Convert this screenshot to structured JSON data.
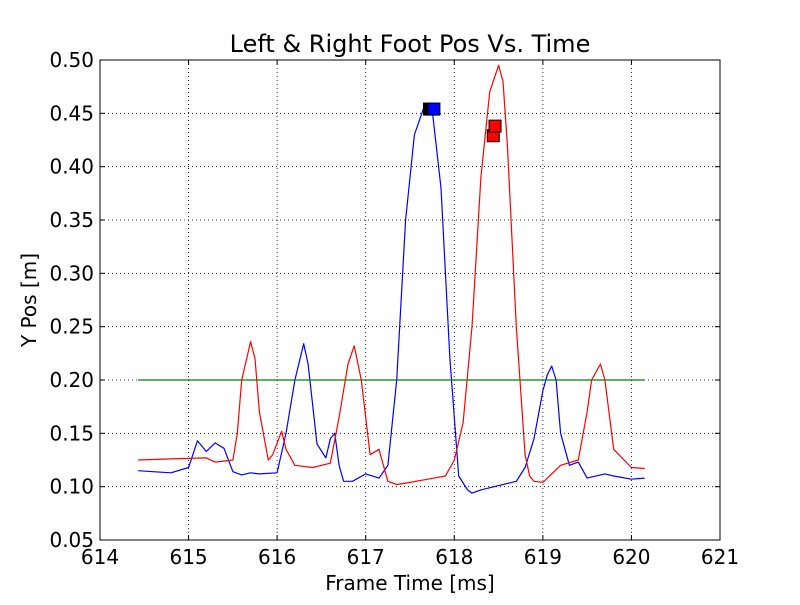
{
  "chart_data": {
    "type": "line",
    "title": "Left & Right Foot Pos Vs. Time",
    "xlabel": "Frame Time [ms]",
    "ylabel": "Y Pos [m]",
    "xlim": [
      614,
      621
    ],
    "ylim": [
      0.05,
      0.5
    ],
    "x_ticks": [
      "614",
      "615",
      "616",
      "617",
      "618",
      "619",
      "620",
      "621"
    ],
    "y_ticks": [
      "0.05",
      "0.10",
      "0.15",
      "0.20",
      "0.25",
      "0.30",
      "0.35",
      "0.40",
      "0.45",
      "0.50"
    ],
    "grid": true,
    "grid_style": "dotted",
    "colors": {
      "blue": "#0000ff",
      "red": "#ff0000",
      "green": "#008000",
      "black": "#000000"
    },
    "series": [
      {
        "color": "#0000ff",
        "x": [
          614.43,
          614.6,
          614.8,
          615.0,
          615.1,
          615.2,
          615.3,
          615.4,
          615.5,
          615.6,
          615.7,
          615.8,
          616.0,
          616.1,
          616.2,
          616.3,
          616.35,
          616.45,
          616.55,
          616.6,
          616.65,
          616.7,
          616.75,
          616.85,
          617.0,
          617.15,
          617.25,
          617.35,
          617.45,
          617.55,
          617.65,
          617.75,
          617.85,
          617.95,
          618.05,
          618.15,
          618.2,
          618.3,
          618.5,
          618.7,
          618.8,
          618.9,
          619.0,
          619.05,
          619.1,
          619.15,
          619.2,
          619.3,
          619.4,
          619.5,
          619.7,
          619.8,
          620.0,
          620.15
        ],
        "y": [
          0.115,
          0.114,
          0.113,
          0.118,
          0.143,
          0.133,
          0.141,
          0.136,
          0.114,
          0.111,
          0.113,
          0.112,
          0.113,
          0.15,
          0.2,
          0.234,
          0.215,
          0.14,
          0.127,
          0.145,
          0.15,
          0.12,
          0.105,
          0.105,
          0.112,
          0.108,
          0.12,
          0.2,
          0.35,
          0.43,
          0.454,
          0.454,
          0.38,
          0.22,
          0.11,
          0.097,
          0.094,
          0.097,
          0.101,
          0.105,
          0.118,
          0.145,
          0.19,
          0.205,
          0.213,
          0.2,
          0.15,
          0.12,
          0.123,
          0.108,
          0.112,
          0.11,
          0.107,
          0.108
        ]
      },
      {
        "color": "#ff0000",
        "x": [
          614.43,
          614.8,
          615.2,
          615.3,
          615.5,
          615.55,
          615.6,
          615.7,
          615.75,
          615.8,
          615.9,
          615.95,
          616.05,
          616.1,
          616.2,
          616.4,
          616.6,
          616.7,
          616.8,
          616.87,
          616.95,
          617.05,
          617.15,
          617.2,
          617.25,
          617.35,
          617.5,
          617.7,
          617.9,
          618.0,
          618.1,
          618.2,
          618.3,
          618.4,
          618.5,
          618.55,
          618.6,
          618.7,
          618.8,
          618.85,
          618.9,
          619.0,
          619.2,
          619.4,
          619.5,
          619.55,
          619.65,
          619.7,
          619.8,
          620.0,
          620.15
        ],
        "y": [
          0.125,
          0.126,
          0.127,
          0.123,
          0.125,
          0.15,
          0.2,
          0.236,
          0.22,
          0.17,
          0.125,
          0.13,
          0.152,
          0.135,
          0.12,
          0.118,
          0.122,
          0.165,
          0.215,
          0.232,
          0.2,
          0.13,
          0.135,
          0.12,
          0.105,
          0.102,
          0.104,
          0.107,
          0.11,
          0.125,
          0.16,
          0.25,
          0.39,
          0.47,
          0.495,
          0.48,
          0.42,
          0.25,
          0.13,
          0.11,
          0.105,
          0.104,
          0.12,
          0.125,
          0.17,
          0.2,
          0.215,
          0.2,
          0.135,
          0.118,
          0.117
        ]
      },
      {
        "color": "#008000",
        "x": [
          614.43,
          620.15
        ],
        "y": [
          0.2,
          0.2
        ]
      }
    ],
    "markers": [
      {
        "x": 617.72,
        "y": 0.454,
        "color": "#000000",
        "shape": "square"
      },
      {
        "x": 617.77,
        "y": 0.454,
        "color": "#0000ff",
        "shape": "square"
      },
      {
        "x": 618.44,
        "y": 0.429,
        "color": "#ff0000",
        "shape": "square"
      },
      {
        "x": 618.46,
        "y": 0.438,
        "color": "#ff0000",
        "shape": "square"
      }
    ]
  }
}
